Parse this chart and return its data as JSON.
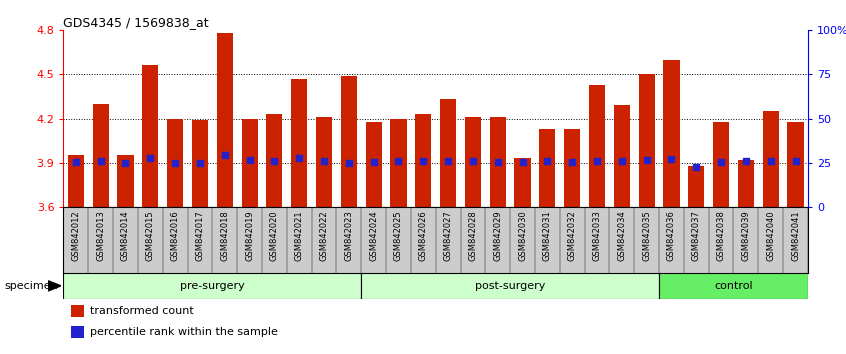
{
  "title": "GDS4345 / 1569838_at",
  "samples": [
    "GSM842012",
    "GSM842013",
    "GSM842014",
    "GSM842015",
    "GSM842016",
    "GSM842017",
    "GSM842018",
    "GSM842019",
    "GSM842020",
    "GSM842021",
    "GSM842022",
    "GSM842023",
    "GSM842024",
    "GSM842025",
    "GSM842026",
    "GSM842027",
    "GSM842028",
    "GSM842029",
    "GSM842030",
    "GSM842031",
    "GSM842032",
    "GSM842033",
    "GSM842034",
    "GSM842035",
    "GSM842036",
    "GSM842037",
    "GSM842038",
    "GSM842039",
    "GSM842040",
    "GSM842041"
  ],
  "bar_values": [
    3.95,
    4.3,
    3.95,
    4.56,
    4.2,
    4.19,
    4.78,
    4.2,
    4.23,
    4.47,
    4.21,
    4.49,
    4.18,
    4.2,
    4.23,
    4.33,
    4.21,
    4.21,
    3.93,
    4.13,
    4.13,
    4.43,
    4.29,
    4.5,
    4.6,
    3.88,
    4.18,
    3.92,
    4.25,
    4.18
  ],
  "percentile_values": [
    3.905,
    3.913,
    3.9,
    3.93,
    3.9,
    3.9,
    3.95,
    3.92,
    3.913,
    3.93,
    3.913,
    3.9,
    3.905,
    3.913,
    3.913,
    3.913,
    3.913,
    3.905,
    3.905,
    3.913,
    3.905,
    3.913,
    3.913,
    3.92,
    3.925,
    3.875,
    3.905,
    3.91,
    3.913,
    3.913
  ],
  "groups": [
    {
      "label": "pre-surgery",
      "start": 0,
      "end": 12,
      "color": "#ccffcc"
    },
    {
      "label": "post-surgery",
      "start": 12,
      "end": 24,
      "color": "#ccffcc"
    },
    {
      "label": "control",
      "start": 24,
      "end": 30,
      "color": "#66ee66"
    }
  ],
  "ymin": 3.6,
  "ymax": 4.8,
  "yticks": [
    3.6,
    3.9,
    4.2,
    4.5,
    4.8
  ],
  "bar_color": "#cc2200",
  "dot_color": "#2222cc",
  "bg_color": "#ffffff",
  "xtick_bg": "#cccccc",
  "specimen_label": "specimen",
  "legend_items": [
    {
      "label": "transformed count",
      "color": "#cc2200"
    },
    {
      "label": "percentile rank within the sample",
      "color": "#2222cc"
    }
  ]
}
